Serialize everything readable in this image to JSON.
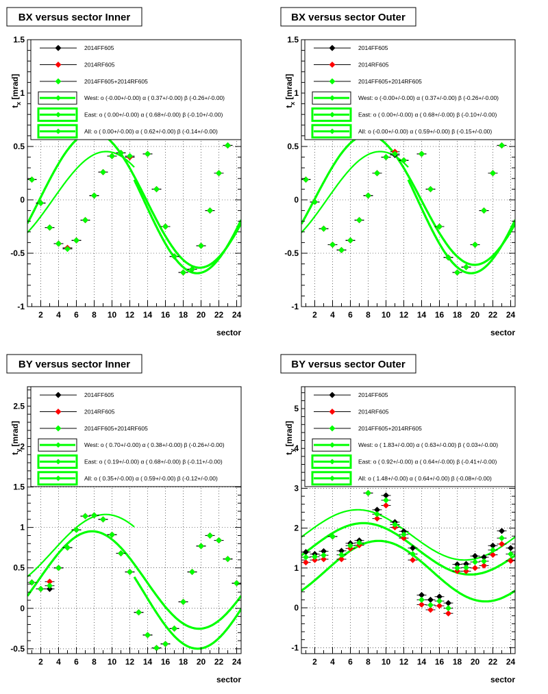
{
  "colors": {
    "black": "#000000",
    "red": "#ff0000",
    "green": "#00ff00",
    "grid": "#000000",
    "background": "#ffffff"
  },
  "chart_data": [
    {
      "type": "scatter",
      "title": "BX versus  sector Inner",
      "xlabel": "sector",
      "ylabel": "t_x [mrad]",
      "xlim": [
        0.5,
        24.5
      ],
      "ylim": [
        -1,
        1.5
      ],
      "xticks": [
        2,
        4,
        6,
        8,
        10,
        12,
        14,
        16,
        18,
        20,
        22,
        24
      ],
      "yticks": [
        -1,
        -0.5,
        0,
        0.5,
        1,
        1.5
      ],
      "grid": true,
      "legend_position": "top",
      "legend": [
        "2014FF605",
        "2014RF605",
        "2014FF605+2014RF605",
        "West: o (-0.00+/-0.00) α ( 0.37+/-0.00) β (-0.26+/-0.00)",
        "East: o ( 0.00+/-0.00) α ( 0.68+/-0.00) β (-0.10+/-0.00)",
        "All: o ( 0.00+/-0.00) α ( 0.62+/-0.00) β (-0.14+/-0.00)"
      ],
      "series": [
        {
          "name": "2014FF605",
          "x": [
            1,
            2,
            3,
            4,
            5,
            6,
            7,
            8,
            9,
            10,
            11,
            12,
            13,
            14,
            15,
            16,
            17,
            18,
            19,
            20,
            21,
            22,
            23,
            24
          ],
          "y": [
            0.19,
            -0.03,
            -0.26,
            -0.41,
            -0.45,
            -0.38,
            -0.19,
            0.04,
            0.26,
            0.41,
            0.44,
            0.4,
            0.64,
            0.43,
            0.1,
            -0.25,
            -0.53,
            -0.68,
            -0.65,
            -0.43,
            -0.1,
            0.25,
            0.51,
            0.64
          ]
        },
        {
          "name": "2014RF605",
          "x": [
            1,
            2,
            3,
            4,
            5,
            6,
            7,
            8,
            9,
            10,
            11,
            12,
            13,
            14,
            15,
            16,
            17,
            18,
            19,
            20,
            21,
            22,
            23,
            24
          ],
          "y": [
            0.19,
            -0.03,
            -0.26,
            -0.41,
            -0.45,
            -0.38,
            -0.19,
            0.04,
            0.26,
            0.41,
            0.44,
            0.4,
            0.64,
            0.43,
            0.1,
            -0.25,
            -0.53,
            -0.68,
            -0.65,
            -0.43,
            -0.1,
            0.25,
            0.51,
            0.64
          ]
        },
        {
          "name": "2014FF605+2014RF605",
          "x": [
            1,
            2,
            3,
            4,
            5,
            6,
            7,
            8,
            9,
            10,
            11,
            12,
            13,
            14,
            15,
            16,
            17,
            18,
            19,
            20,
            21,
            22,
            23,
            24
          ],
          "y": [
            0.19,
            -0.03,
            -0.26,
            -0.41,
            -0.46,
            -0.38,
            -0.19,
            0.04,
            0.26,
            0.41,
            0.44,
            0.41,
            0.64,
            0.43,
            0.1,
            -0.25,
            -0.53,
            -0.68,
            -0.65,
            -0.43,
            -0.1,
            0.25,
            0.51,
            0.65
          ]
        }
      ],
      "fits": [
        {
          "name": "West",
          "o": -0.0,
          "alpha": 0.37,
          "beta": -0.26,
          "range": [
            0.5,
            12.5
          ]
        },
        {
          "name": "East",
          "o": 0.0,
          "alpha": 0.68,
          "beta": -0.1,
          "range": [
            12.5,
            24.5
          ]
        },
        {
          "name": "All",
          "o": 0.0,
          "alpha": 0.62,
          "beta": -0.14,
          "range": [
            0.5,
            24.5
          ]
        }
      ]
    },
    {
      "type": "scatter",
      "title": "BX versus  sector Outer",
      "xlabel": "sector",
      "ylabel": "t_x [mrad]",
      "xlim": [
        0.5,
        24.5
      ],
      "ylim": [
        -1,
        1.5
      ],
      "xticks": [
        2,
        4,
        6,
        8,
        10,
        12,
        14,
        16,
        18,
        20,
        22,
        24
      ],
      "yticks": [
        -1,
        -0.5,
        0,
        0.5,
        1,
        1.5
      ],
      "grid": true,
      "legend_position": "top",
      "legend": [
        "2014FF605",
        "2014RF605",
        "2014FF605+2014RF605",
        "West: o (-0.00+/-0.00) α ( 0.37+/-0.00) β (-0.26+/-0.00)",
        "East: o ( 0.00+/-0.00) α ( 0.68+/-0.00) β (-0.10+/-0.00)",
        "All: o (-0.00+/-0.00) α ( 0.59+/-0.00) β (-0.15+/-0.00)"
      ],
      "series": [
        {
          "name": "2014FF605",
          "x": [
            1,
            2,
            3,
            4,
            5,
            6,
            7,
            8,
            9,
            10,
            11,
            12,
            13,
            14,
            15,
            16,
            17,
            18,
            19,
            20,
            21,
            22,
            23,
            24
          ],
          "y": [
            0.19,
            -0.02,
            -0.27,
            -0.42,
            -0.47,
            -0.38,
            -0.19,
            0.04,
            0.25,
            0.4,
            0.42,
            0.37,
            0.65,
            0.43,
            0.1,
            -0.25,
            -0.54,
            -0.68,
            -0.63,
            -0.42,
            -0.1,
            0.25,
            0.51,
            0.65
          ]
        },
        {
          "name": "2014RF605",
          "x": [
            1,
            2,
            3,
            4,
            5,
            6,
            7,
            8,
            9,
            10,
            11,
            12,
            13,
            14,
            15,
            16,
            17,
            18,
            19,
            20,
            21,
            22,
            23,
            24
          ],
          "y": [
            0.19,
            -0.02,
            -0.27,
            -0.42,
            -0.47,
            -0.38,
            -0.19,
            0.04,
            0.25,
            0.4,
            0.45,
            0.37,
            0.65,
            0.43,
            0.1,
            -0.25,
            -0.54,
            -0.68,
            -0.63,
            -0.42,
            -0.1,
            0.25,
            0.51,
            0.65
          ]
        },
        {
          "name": "2014FF605+2014RF605",
          "x": [
            1,
            2,
            3,
            4,
            5,
            6,
            7,
            8,
            9,
            10,
            11,
            12,
            13,
            14,
            15,
            16,
            17,
            18,
            19,
            20,
            21,
            22,
            23,
            24
          ],
          "y": [
            0.19,
            -0.02,
            -0.27,
            -0.42,
            -0.47,
            -0.38,
            -0.19,
            0.04,
            0.25,
            0.4,
            0.43,
            0.37,
            0.65,
            0.43,
            0.1,
            -0.25,
            -0.54,
            -0.68,
            -0.63,
            -0.42,
            -0.1,
            0.25,
            0.51,
            0.66
          ]
        }
      ],
      "fits": [
        {
          "name": "West",
          "o": -0.0,
          "alpha": 0.37,
          "beta": -0.26,
          "range": [
            0.5,
            12.5
          ]
        },
        {
          "name": "East",
          "o": 0.0,
          "alpha": 0.68,
          "beta": -0.1,
          "range": [
            12.5,
            24.5
          ]
        },
        {
          "name": "All",
          "o": -0.0,
          "alpha": 0.59,
          "beta": -0.15,
          "range": [
            0.5,
            24.5
          ]
        }
      ]
    },
    {
      "type": "scatter",
      "title": "BY versus  sector Inner",
      "xlabel": "sector",
      "ylabel": "t_y [mrad]",
      "xlim": [
        0.5,
        24.5
      ],
      "ylim": [
        -0.56,
        2.74
      ],
      "xticks": [
        2,
        4,
        6,
        8,
        10,
        12,
        14,
        16,
        18,
        20,
        22,
        24
      ],
      "yticks": [
        -0.5,
        0,
        0.5,
        1,
        1.5,
        2,
        2.5
      ],
      "grid": true,
      "legend_position": "top",
      "legend": [
        "2014FF605",
        "2014RF605",
        "2014FF605+2014RF605",
        "West: o ( 0.70+/-0.00) α ( 0.38+/-0.00) β (-0.26+/-0.00)",
        "East: o ( 0.19+/-0.00) α ( 0.68+/-0.00) β (-0.11+/-0.00)",
        "All: o ( 0.35+/-0.00) α ( 0.59+/-0.00) β (-0.12+/-0.00)"
      ],
      "series": [
        {
          "name": "2014FF605",
          "x": [
            1,
            2,
            3,
            4,
            5,
            6,
            7,
            8,
            9,
            10,
            11,
            12,
            13,
            14,
            15,
            16,
            17,
            18,
            19,
            20,
            21,
            22,
            23,
            24
          ],
          "y": [
            0.32,
            0.24,
            0.24,
            0.5,
            0.75,
            0.97,
            1.14,
            1.15,
            1.1,
            0.91,
            0.68,
            0.45,
            -0.05,
            -0.33,
            -0.49,
            -0.44,
            -0.25,
            0.08,
            0.45,
            0.77,
            0.9,
            0.84,
            0.61,
            0.31
          ]
        },
        {
          "name": "2014RF605",
          "x": [
            1,
            2,
            3,
            4,
            5,
            6,
            7,
            8,
            9,
            10,
            11,
            12,
            13,
            14,
            15,
            16,
            17,
            18,
            19,
            20,
            21,
            22,
            23,
            24
          ],
          "y": [
            0.32,
            0.24,
            0.33,
            0.5,
            0.75,
            0.97,
            1.14,
            1.15,
            1.1,
            0.91,
            0.68,
            0.45,
            -0.05,
            -0.33,
            -0.49,
            -0.44,
            -0.25,
            0.08,
            0.45,
            0.77,
            0.9,
            0.84,
            0.61,
            0.31
          ]
        },
        {
          "name": "2014FF605+2014RF605",
          "x": [
            1,
            2,
            3,
            4,
            5,
            6,
            7,
            8,
            9,
            10,
            11,
            12,
            13,
            14,
            15,
            16,
            17,
            18,
            19,
            20,
            21,
            22,
            23,
            24
          ],
          "y": [
            0.32,
            0.24,
            0.28,
            0.5,
            0.75,
            0.97,
            1.14,
            1.15,
            1.1,
            0.91,
            0.68,
            0.45,
            -0.05,
            -0.33,
            -0.49,
            -0.44,
            -0.25,
            0.08,
            0.45,
            0.77,
            0.9,
            0.84,
            0.61,
            0.31
          ]
        }
      ],
      "fits": [
        {
          "name": "West",
          "o": 0.7,
          "alpha": 0.38,
          "beta": -0.26,
          "range": [
            0.5,
            12.5
          ]
        },
        {
          "name": "East",
          "o": 0.19,
          "alpha": 0.68,
          "beta": -0.11,
          "range": [
            12.5,
            24.5
          ]
        },
        {
          "name": "All",
          "o": 0.35,
          "alpha": 0.59,
          "beta": -0.12,
          "range": [
            0.5,
            24.5
          ]
        }
      ]
    },
    {
      "type": "scatter",
      "title": "BY versus  sector Outer",
      "xlabel": "sector",
      "ylabel": "t_y [mrad]",
      "xlim": [
        0.5,
        24.5
      ],
      "ylim": [
        -1.15,
        5.55
      ],
      "xticks": [
        2,
        4,
        6,
        8,
        10,
        12,
        14,
        16,
        18,
        20,
        22,
        24
      ],
      "yticks": [
        -1,
        0,
        1,
        2,
        3,
        4,
        5
      ],
      "grid": true,
      "legend_position": "top",
      "legend": [
        "2014FF605",
        "2014RF605",
        "2014FF605+2014RF605",
        "West: o ( 1.83+/-0.00) α ( 0.63+/-0.00) β ( 0.03+/-0.00)",
        "East: o ( 0.92+/-0.00) α ( 0.64+/-0.00) β (-0.41+/-0.00)",
        "All: o ( 1.48+/-0.00) α ( 0.64+/-0.00) β (-0.08+/-0.00)"
      ],
      "series": [
        {
          "name": "2014FF605",
          "x": [
            1,
            2,
            3,
            4,
            5,
            6,
            7,
            8,
            9,
            10,
            11,
            12,
            13,
            14,
            15,
            16,
            17,
            18,
            19,
            20,
            21,
            22,
            23,
            24
          ],
          "y": [
            1.4,
            1.35,
            1.42,
            1.79,
            1.43,
            1.62,
            1.69,
            2.88,
            2.46,
            2.82,
            2.15,
            1.92,
            1.5,
            0.32,
            0.2,
            0.28,
            0.12,
            1.09,
            1.1,
            1.3,
            1.27,
            1.56,
            1.93,
            1.5
          ]
        },
        {
          "name": "2014RF605",
          "x": [
            1,
            2,
            3,
            4,
            5,
            6,
            7,
            8,
            9,
            10,
            11,
            12,
            13,
            14,
            15,
            16,
            17,
            18,
            19,
            20,
            21,
            22,
            23,
            24
          ],
          "y": [
            1.14,
            1.2,
            1.22,
            1.79,
            1.22,
            1.49,
            1.57,
            2.88,
            2.24,
            2.57,
            2.02,
            1.75,
            1.2,
            0.08,
            -0.05,
            0.05,
            -0.14,
            0.92,
            0.92,
            1.0,
            1.06,
            1.33,
            1.6,
            1.18
          ]
        },
        {
          "name": "2014FF605+2014RF605",
          "x": [
            1,
            2,
            3,
            4,
            5,
            6,
            7,
            8,
            9,
            10,
            11,
            12,
            13,
            14,
            15,
            16,
            17,
            18,
            19,
            20,
            21,
            22,
            23,
            24
          ],
          "y": [
            1.27,
            1.28,
            1.32,
            1.79,
            1.33,
            1.56,
            1.63,
            2.88,
            2.35,
            2.7,
            2.09,
            1.84,
            1.35,
            0.2,
            0.07,
            0.17,
            -0.01,
            1.0,
            1.01,
            1.15,
            1.17,
            1.45,
            1.75,
            1.35
          ]
        }
      ],
      "fits": [
        {
          "name": "West",
          "o": 1.83,
          "alpha": 0.63,
          "beta": 0.03,
          "range": [
            0.5,
            24.5
          ]
        },
        {
          "name": "East",
          "o": 0.92,
          "alpha": 0.64,
          "beta": -0.41,
          "range": [
            0.5,
            24.5
          ]
        },
        {
          "name": "All",
          "o": 1.48,
          "alpha": 0.64,
          "beta": -0.08,
          "range": [
            0.5,
            24.5
          ]
        }
      ]
    }
  ]
}
